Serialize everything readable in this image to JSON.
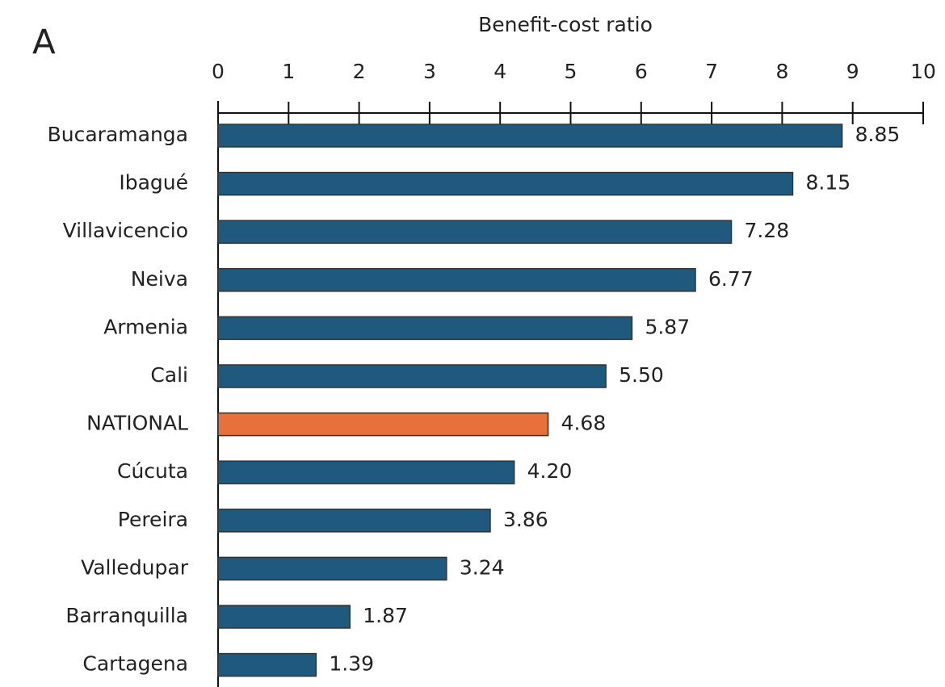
{
  "chart_data": {
    "type": "barh",
    "panel_label": "A",
    "x_label": "Benefit-cost ratio",
    "categories": [
      "Bucaramanga",
      "Ibagué",
      "Villavicencio",
      "Neiva",
      "Armenia",
      "Cali",
      "NATIONAL",
      "Cúcuta",
      "Pereira",
      "Valledupar",
      "Barranquilla",
      "Cartagena"
    ],
    "values": [
      8.85,
      8.15,
      7.28,
      6.77,
      5.87,
      5.5,
      4.68,
      4.2,
      3.86,
      3.24,
      1.87,
      1.39
    ],
    "value_labels": [
      "8.85",
      "8.15",
      "7.28",
      "6.77",
      "5.87",
      "5.50",
      "4.68",
      "4.20",
      "3.86",
      "3.24",
      "1.87",
      "1.39"
    ],
    "colors": [
      "#1f5a7e",
      "#1f5a7e",
      "#1f5a7e",
      "#1f5a7e",
      "#1f5a7e",
      "#1f5a7e",
      "#e8703a",
      "#1f5a7e",
      "#1f5a7e",
      "#1f5a7e",
      "#1f5a7e",
      "#1f5a7e"
    ],
    "xlim": [
      0,
      10
    ],
    "xticks": [
      0,
      1,
      2,
      3,
      4,
      5,
      6,
      7,
      8,
      9,
      10
    ],
    "axis_position": "top"
  }
}
